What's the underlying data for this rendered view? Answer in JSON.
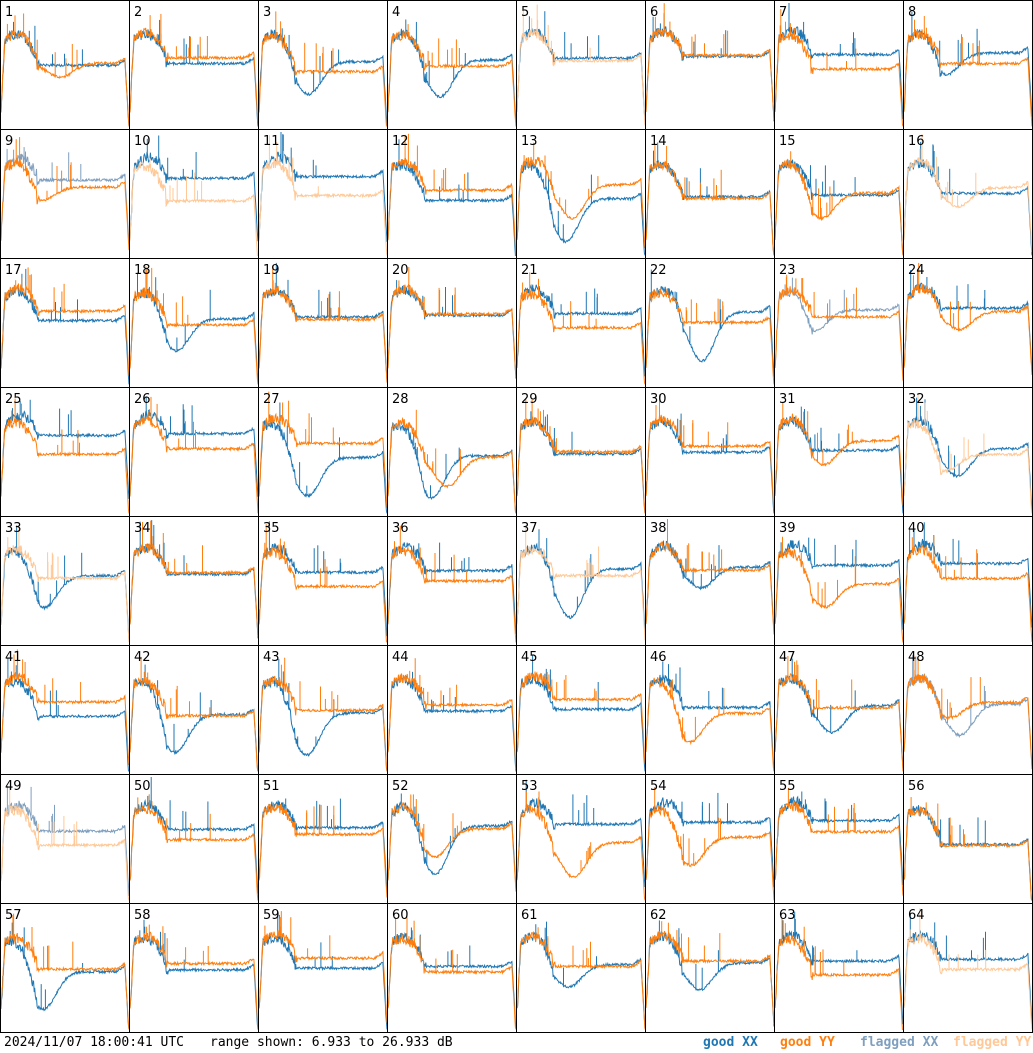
{
  "chart_data": {
    "type": "line",
    "layout": "8x8 small multiples",
    "ylim_db": [
      6.933,
      26.933
    ],
    "footer": {
      "timestamp": "2024/11/07 18:00:41 UTC",
      "range_text": "range shown: 6.933 to 26.933 dB"
    },
    "legend": [
      {
        "key": "good_xx",
        "label": "good XX",
        "color": "#1f77b4"
      },
      {
        "key": "good_yy",
        "label": "good YY",
        "color": "#ff7f0e"
      },
      {
        "key": "flagged_xx",
        "label": "flagged XX",
        "color": "#7f9fbf"
      },
      {
        "key": "flagged_yy",
        "label": "flagged YY",
        "color": "#ffc896"
      }
    ],
    "panel_labels": [
      "1",
      "2",
      "3",
      "4",
      "5",
      "6",
      "7",
      "8",
      "9",
      "10",
      "11",
      "12",
      "13",
      "14",
      "15",
      "16",
      "17",
      "18",
      "19",
      "20",
      "21",
      "22",
      "23",
      "24",
      "25",
      "26",
      "27",
      "28",
      "29",
      "30",
      "31",
      "32",
      "33",
      "34",
      "35",
      "36",
      "37",
      "38",
      "39",
      "40",
      "41",
      "42",
      "43",
      "44",
      "45",
      "46",
      "47",
      "48",
      "49",
      "50",
      "51",
      "52",
      "53",
      "54",
      "55",
      "56",
      "57",
      "58",
      "59",
      "60",
      "61",
      "62",
      "63",
      "64"
    ],
    "panel_status": {
      "xx": [
        "good",
        "good",
        "good",
        "good",
        "good",
        "good",
        "good",
        "good",
        "flagged",
        "good",
        "good",
        "good",
        "good",
        "good",
        "good",
        "good",
        "good",
        "good",
        "good",
        "good",
        "good",
        "good",
        "flagged",
        "good",
        "good",
        "good",
        "good",
        "good",
        "good",
        "good",
        "good",
        "good",
        "good",
        "good",
        "good",
        "good",
        "good",
        "good",
        "good",
        "good",
        "good",
        "good",
        "good",
        "good",
        "good",
        "good",
        "good",
        "flagged",
        "flagged",
        "good",
        "good",
        "good",
        "good",
        "good",
        "good",
        "good",
        "good",
        "good",
        "good",
        "good",
        "good",
        "good",
        "good",
        "good"
      ],
      "yy": [
        "good",
        "good",
        "good",
        "good",
        "flagged",
        "good",
        "good",
        "good",
        "good",
        "flagged",
        "flagged",
        "good",
        "good",
        "good",
        "good",
        "flagged",
        "good",
        "good",
        "good",
        "good",
        "good",
        "good",
        "good",
        "good",
        "good",
        "good",
        "good",
        "good",
        "good",
        "good",
        "good",
        "flagged",
        "flagged",
        "good",
        "good",
        "good",
        "flagged",
        "good",
        "good",
        "good",
        "good",
        "good",
        "good",
        "good",
        "good",
        "good",
        "good",
        "good",
        "flagged",
        "good",
        "good",
        "good",
        "good",
        "good",
        "good",
        "good",
        "good",
        "good",
        "good",
        "good",
        "good",
        "good",
        "good",
        "flagged"
      ]
    }
  }
}
